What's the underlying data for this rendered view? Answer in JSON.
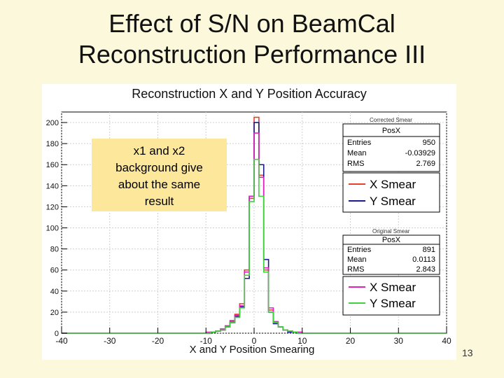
{
  "slide": {
    "title_line1": "Effect of S/N on BeamCal",
    "title_line2": "Reconstruction Performance III",
    "number": "13"
  },
  "callout": {
    "line1": "x1 and x2",
    "line2": "background give",
    "line3": "about the same",
    "line4": "result"
  },
  "stats_corrected": {
    "header": "Corrected Smear",
    "name": "PosX",
    "rows": [
      {
        "label": "Entries",
        "value": "950"
      },
      {
        "label": "Mean",
        "value": "-0.03929"
      },
      {
        "label": "RMS",
        "value": "2.769"
      }
    ]
  },
  "stats_original": {
    "header": "Original Smear",
    "name": "PosX",
    "rows": [
      {
        "label": "Entries",
        "value": "891"
      },
      {
        "label": "Mean",
        "value": "0.0113"
      },
      {
        "label": "RMS",
        "value": "2.843"
      }
    ]
  },
  "chart_data": {
    "type": "histogram",
    "title": "Reconstruction X and Y Position Accuracy",
    "xlabel": "X and Y Position Smearing",
    "ylabel": "",
    "xlim": [
      -40,
      40
    ],
    "ylim": [
      0,
      210
    ],
    "x_ticks": [
      -40,
      -30,
      -20,
      -10,
      0,
      10,
      20,
      30,
      40
    ],
    "y_ticks": [
      0,
      20,
      40,
      60,
      80,
      100,
      120,
      140,
      160,
      180,
      200
    ],
    "bin_width": 1,
    "bin_edges": [
      -10,
      -9,
      -8,
      -7,
      -6,
      -5,
      -4,
      -3,
      -2,
      -1,
      0,
      1,
      2,
      3,
      4,
      5,
      6,
      7,
      8,
      9,
      10
    ],
    "legends": [
      {
        "entries": [
          "X Smear",
          "Y Smear"
        ]
      },
      {
        "entries": [
          "X Smear",
          "Y Smear"
        ]
      }
    ],
    "series": [
      {
        "name": "X Smear",
        "group": "Corrected Smear",
        "color": "#e8402a",
        "values": [
          0,
          1,
          2,
          3,
          6,
          11,
          18,
          28,
          60,
          128,
          205,
          150,
          60,
          22,
          10,
          6,
          3,
          2,
          1,
          1
        ]
      },
      {
        "name": "Y Smear",
        "group": "Corrected Smear",
        "color": "#1a1a8c",
        "values": [
          0,
          1,
          2,
          3,
          6,
          10,
          16,
          25,
          52,
          130,
          200,
          160,
          70,
          20,
          9,
          6,
          3,
          1,
          1,
          0
        ]
      },
      {
        "name": "X Smear",
        "group": "Original Smear",
        "color": "#e020c0",
        "values": [
          1,
          1,
          2,
          4,
          7,
          12,
          17,
          26,
          58,
          130,
          190,
          148,
          62,
          24,
          11,
          6,
          3,
          2,
          1,
          1
        ]
      },
      {
        "name": "Y Smear",
        "group": "Original Smear",
        "color": "#40d040",
        "values": [
          0,
          1,
          2,
          3,
          6,
          10,
          15,
          24,
          55,
          125,
          165,
          130,
          58,
          20,
          10,
          6,
          3,
          2,
          1,
          0
        ]
      }
    ]
  }
}
